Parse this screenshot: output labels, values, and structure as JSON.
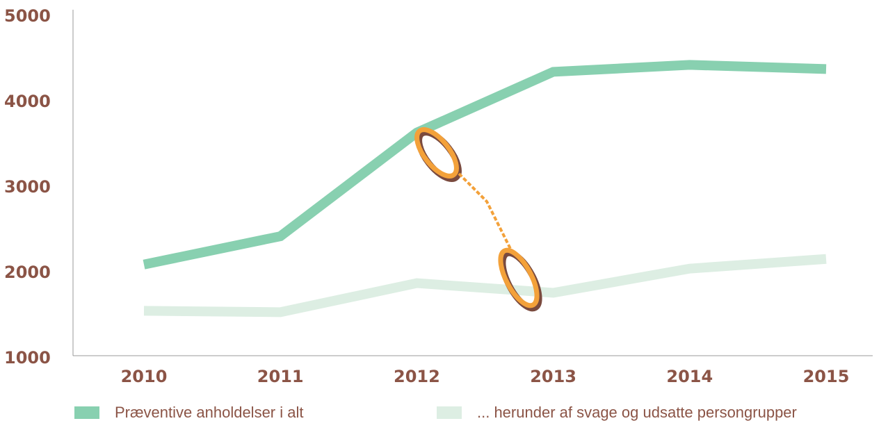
{
  "chart_data": {
    "type": "line",
    "categories": [
      "2010",
      "2011",
      "2012",
      "2013",
      "2014",
      "2015"
    ],
    "series": [
      {
        "name": "Præventive anholdelser i alt",
        "color": "#88d0b0",
        "values": [
          2067,
          2398,
          3611,
          4322,
          4403,
          4355
        ]
      },
      {
        "name": "... herunder af svage og udsatte persongrupper",
        "color": "#ddeee3",
        "values": [
          1525,
          1509,
          1849,
          1736,
          2019,
          2132
        ]
      }
    ],
    "ylim": [
      1000,
      5000
    ],
    "yticks": [
      1000,
      2000,
      3000,
      4000,
      5000
    ],
    "grid": false
  }
}
